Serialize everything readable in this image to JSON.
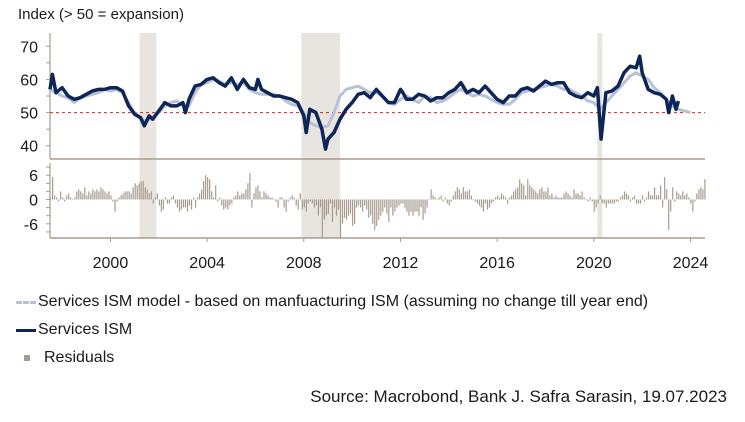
{
  "chart_data": [
    {
      "type": "line",
      "title": "Index (> 50 = expansion)",
      "ylabel": "Index",
      "ylim": [
        36,
        74
      ],
      "yticks": [
        40,
        50,
        60,
        70
      ],
      "reference_line": {
        "value": 50,
        "color": "#e02020",
        "style": "dashed"
      },
      "recessions": [
        [
          2001.2,
          2001.9
        ],
        [
          2007.9,
          2009.5
        ],
        [
          2020.15,
          2020.35
        ]
      ],
      "series": [
        {
          "name": "Services ISM model - based on manfuacturing ISM (assuming no change till year end)",
          "color": "#b8c2d6",
          "x": [
            1997.5,
            1997.75,
            1998,
            1998.25,
            1998.5,
            1998.75,
            1999,
            1999.25,
            1999.5,
            1999.75,
            2000,
            2000.25,
            2000.5,
            2000.75,
            2001,
            2001.25,
            2001.5,
            2001.75,
            2002,
            2002.25,
            2002.5,
            2002.75,
            2003,
            2003.25,
            2003.5,
            2003.75,
            2004,
            2004.25,
            2004.5,
            2004.75,
            2005,
            2005.25,
            2005.5,
            2005.75,
            2006,
            2006.25,
            2006.5,
            2006.75,
            2007,
            2007.25,
            2007.5,
            2007.75,
            2008,
            2008.25,
            2008.5,
            2008.75,
            2009,
            2009.25,
            2009.5,
            2009.75,
            2010,
            2010.25,
            2010.5,
            2010.75,
            2011,
            2011.25,
            2011.5,
            2011.75,
            2012,
            2012.25,
            2012.5,
            2012.75,
            2013,
            2013.25,
            2013.5,
            2013.75,
            2014,
            2014.25,
            2014.5,
            2014.75,
            2015,
            2015.25,
            2015.5,
            2015.75,
            2016,
            2016.25,
            2016.5,
            2016.75,
            2017,
            2017.25,
            2017.5,
            2017.75,
            2018,
            2018.25,
            2018.5,
            2018.75,
            2019,
            2019.25,
            2019.5,
            2019.75,
            2020,
            2020.25,
            2020.5,
            2020.75,
            2021,
            2021.25,
            2021.5,
            2021.75,
            2022,
            2022.25,
            2022.5,
            2022.75,
            2023,
            2023.25,
            2023.5,
            2023.75,
            2024
          ],
          "values": [
            57,
            56,
            55,
            54.5,
            53,
            54.5,
            55,
            55.5,
            56,
            57,
            56.5,
            57,
            56,
            53,
            50,
            48,
            47.5,
            48.5,
            50,
            52,
            53,
            53.5,
            52,
            52,
            56,
            58.5,
            59,
            60,
            59.5,
            58.5,
            59,
            58.5,
            59,
            57,
            56,
            55.5,
            55.5,
            55.5,
            55,
            53.5,
            52.5,
            52,
            50,
            47,
            46,
            45.5,
            46,
            50,
            55,
            57,
            57.5,
            58,
            57,
            56,
            56,
            55,
            53,
            52.5,
            54,
            55,
            54,
            53,
            55,
            54.5,
            53,
            53.5,
            54.5,
            56,
            57,
            56,
            55,
            55.5,
            55,
            54,
            53,
            52.5,
            52.5,
            54,
            56,
            56.5,
            57,
            57.5,
            58,
            58.5,
            58,
            57,
            57,
            56,
            55,
            53.5,
            53,
            51,
            53,
            55,
            57,
            59,
            61,
            62,
            61,
            60,
            57.5,
            56,
            54,
            52,
            51,
            50.5,
            50
          ]
        },
        {
          "name": "Services ISM",
          "color": "#0d2557",
          "x": [
            1997.5,
            1997.6,
            1997.75,
            1998,
            1998.25,
            1998.5,
            1998.75,
            1999,
            1999.25,
            1999.5,
            1999.75,
            2000,
            2000.25,
            2000.5,
            2000.75,
            2001,
            2001.25,
            2001.4,
            2001.6,
            2001.75,
            2002,
            2002.25,
            2002.5,
            2002.75,
            2003,
            2003.1,
            2003.25,
            2003.5,
            2003.75,
            2004,
            2004.25,
            2004.5,
            2004.75,
            2005,
            2005.25,
            2005.5,
            2005.75,
            2006,
            2006.1,
            2006.25,
            2006.5,
            2006.75,
            2007,
            2007.25,
            2007.5,
            2007.75,
            2008,
            2008.1,
            2008.25,
            2008.5,
            2008.75,
            2008.9,
            2009,
            2009.25,
            2009.5,
            2009.75,
            2010,
            2010.25,
            2010.5,
            2010.75,
            2011,
            2011.25,
            2011.5,
            2011.75,
            2012,
            2012.1,
            2012.25,
            2012.5,
            2012.75,
            2013,
            2013.25,
            2013.5,
            2013.75,
            2014,
            2014.25,
            2014.5,
            2014.75,
            2015,
            2015.25,
            2015.5,
            2015.75,
            2016,
            2016.25,
            2016.5,
            2016.75,
            2017,
            2017.25,
            2017.5,
            2017.75,
            2018,
            2018.25,
            2018.5,
            2018.75,
            2019,
            2019.25,
            2019.5,
            2019.75,
            2020,
            2020.15,
            2020.3,
            2020.5,
            2020.75,
            2021,
            2021.25,
            2021.5,
            2021.75,
            2021.9,
            2022,
            2022.25,
            2022.5,
            2022.75,
            2023,
            2023.1,
            2023.25,
            2023.4,
            2023.5
          ],
          "values": [
            57,
            61.5,
            56,
            57.5,
            55,
            54,
            54.5,
            55.5,
            56.5,
            57,
            57,
            57.5,
            57.5,
            56.5,
            52,
            49.5,
            48.5,
            46,
            49,
            48,
            50.5,
            53,
            52,
            52,
            53,
            50,
            54,
            58,
            58.5,
            60,
            60.5,
            59,
            58,
            60.5,
            57,
            60,
            57.5,
            57,
            60,
            57,
            56,
            55,
            55,
            54.5,
            54,
            53,
            49,
            44,
            51,
            50,
            45,
            39,
            42,
            44,
            48,
            51,
            53,
            55.5,
            56,
            54.5,
            57,
            55,
            53,
            53,
            57,
            56,
            54,
            54,
            55.5,
            55,
            53.5,
            54.5,
            54.5,
            56,
            57,
            59,
            56,
            57,
            56,
            58,
            56,
            54,
            53,
            55,
            55,
            57,
            57.5,
            56.5,
            58,
            59.5,
            58.5,
            59,
            59,
            56,
            55,
            54.5,
            56,
            55,
            57.5,
            42,
            56,
            56.5,
            58,
            62,
            64,
            63.5,
            67,
            62,
            57,
            56,
            55.5,
            54,
            50,
            55,
            51,
            53.5
          ]
        }
      ]
    },
    {
      "type": "bar",
      "title": "Residuals",
      "ylim": [
        -9.5,
        9
      ],
      "yticks": [
        -6,
        0,
        6
      ],
      "color": "#a89c8e",
      "x_start": 1997.5,
      "x_step": 0.0833,
      "values": [
        0.5,
        5.5,
        1,
        0.5,
        -0.5,
        2,
        0.5,
        -0.5,
        1,
        1.5,
        0.5,
        0,
        0.5,
        2,
        2.5,
        2,
        1.5,
        3,
        1,
        2,
        1.5,
        2.5,
        2,
        2.5,
        2,
        3,
        2.5,
        2,
        1.5,
        2,
        1,
        -0.5,
        -3,
        -0.5,
        0.5,
        1,
        1.5,
        2,
        2,
        2,
        1.5,
        3,
        4,
        3.5,
        4,
        4.5,
        4.5,
        3,
        2.5,
        1.5,
        2,
        -1,
        0.5,
        1.5,
        -1.5,
        -3,
        -2.5,
        0.5,
        -1,
        -1,
        0.5,
        1,
        -1,
        -2,
        -3,
        -2.5,
        -2,
        -2,
        -3,
        -1.5,
        -2.5,
        0.5,
        -2,
        0.5,
        1.5,
        2.5,
        4.5,
        6,
        5.5,
        5,
        2,
        0.5,
        3.5,
        -0.5,
        0.5,
        -1.5,
        -2.5,
        -2,
        -2.5,
        -1.5,
        -1,
        0.5,
        1,
        2,
        1,
        1.5,
        1.5,
        2.5,
        4,
        6.5,
        -2,
        1.5,
        3,
        3.5,
        2,
        0.5,
        2,
        1.5,
        1,
        0.5,
        0.5,
        0,
        -0.5,
        -2,
        0.5,
        0.5,
        -2,
        -3,
        -0.5,
        0.5,
        1,
        0.5,
        -1.5,
        -2.5,
        1.5,
        -2.5,
        -2,
        -3,
        -1,
        -0.5,
        -1,
        -2,
        -1.5,
        -4,
        -2,
        -9.5,
        -5,
        -4,
        -3.5,
        -1,
        -5.5,
        -2,
        -4,
        -2.5,
        -9.5,
        -6,
        -4.5,
        -5,
        -4,
        -3.5,
        -6.5,
        -6,
        -2,
        -1.5,
        -2,
        -3,
        -1.5,
        -2.5,
        -4.5,
        -4,
        -6,
        -7.5,
        -6.5,
        -5,
        -4,
        -3,
        -2,
        -3.5,
        -5.5,
        -2,
        -4,
        -3,
        -2,
        -1.5,
        -1,
        -1,
        -2,
        -3,
        -4,
        -3,
        -4,
        -3,
        -3,
        -4,
        -2,
        -5,
        -3.5,
        -2,
        0,
        2.5,
        1,
        0.5,
        0,
        0.5,
        1,
        -0.5,
        0.5,
        -1,
        -1.5,
        -0.5,
        1,
        2,
        3,
        2.5,
        1.5,
        3,
        2,
        2,
        2.5,
        1,
        0,
        -0.5,
        -1,
        -1.5,
        -2,
        -3,
        -1,
        -2.5,
        -2,
        -1,
        -0.5,
        0.5,
        1,
        0.5,
        1.5,
        1,
        0.5,
        -1,
        0.5,
        1,
        2,
        2.5,
        3,
        5,
        4,
        3.5,
        1,
        5,
        3.5,
        3,
        2.5,
        2,
        1.5,
        2.5,
        3,
        2,
        2,
        3,
        1,
        1.5,
        0.5,
        1,
        0.5,
        0.5,
        0.5,
        1.5,
        2,
        1.5,
        1,
        0.5,
        2.5,
        1.5,
        1.5,
        1,
        2,
        0.5,
        0,
        -0.5,
        0.5,
        -0.5,
        -3,
        -2,
        -1,
        1,
        -1,
        -1,
        -2,
        -1,
        -1,
        -1,
        -1,
        -0.5,
        -0.5,
        0.5,
        1,
        2,
        1.5,
        1,
        -0.5,
        0.5,
        1,
        -1,
        -1,
        -1,
        1,
        -0.5,
        0.5,
        2,
        1,
        1,
        3,
        1,
        1,
        3.5,
        -2,
        5.5,
        2.5,
        -7.5,
        -3,
        3,
        -0.5,
        2,
        1.5,
        1,
        2,
        1,
        1.5,
        0.5,
        -1,
        -3,
        -0.5,
        1.5,
        2.5,
        3,
        2.5,
        5,
        1.5,
        3,
        5,
        6.5,
        7,
        2.5,
        1,
        2,
        1,
        0.5,
        -1.5,
        -2,
        -0.5,
        -2,
        -1,
        -0.5,
        0.5,
        0.5,
        1,
        2,
        -1,
        2,
        -4,
        1.5,
        3,
        3,
        -0.5,
        -1,
        3.5
      ]
    }
  ],
  "chart_meta": {
    "title": "Index (> 50 = expansion)",
    "xticks": [
      "2000",
      "2004",
      "2008",
      "2012",
      "2016",
      "2020",
      "2024"
    ],
    "xtick_years": [
      2000,
      2004,
      2008,
      2012,
      2016,
      2020,
      2024
    ],
    "xlim": [
      1997.5,
      2024.6
    ],
    "upper_yticks": [
      "70",
      "60",
      "50",
      "40"
    ],
    "lower_yticks": [
      "6",
      "0",
      "-6"
    ]
  },
  "legend": {
    "model_label": "Services ISM model - based on manfuacturing ISM (assuming no change till year end)",
    "ism_label": "Services ISM",
    "residuals_label": "Residuals"
  },
  "source": "Source: Macrobond, Bank J. Safra Sarasin, 19.07.2023"
}
